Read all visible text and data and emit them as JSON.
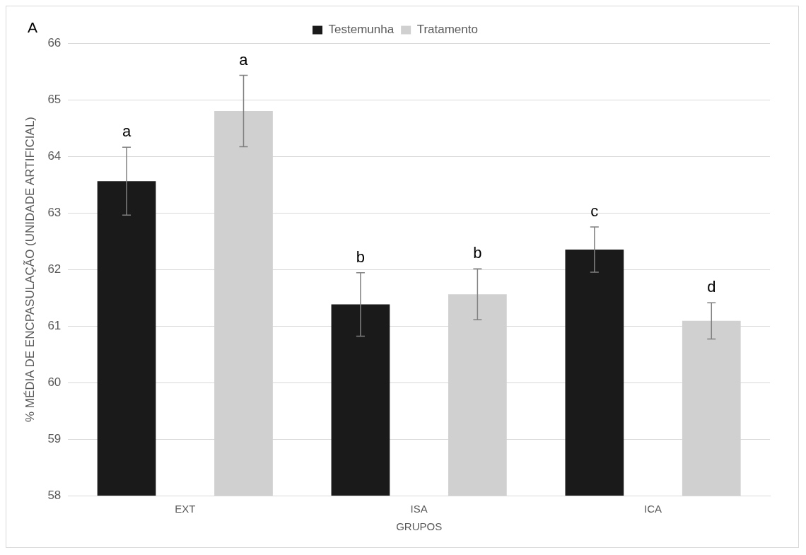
{
  "chart_data": {
    "type": "bar",
    "xlabel": "GRUPOS",
    "ylabel": "% MÉDIA DE ENCPASULAÇÃO (UNIDADE ARTIFICIAL)",
    "annotations": [
      "A"
    ],
    "categories": [
      "EXT",
      "ISA",
      "ICA"
    ],
    "series": [
      {
        "name": "Testemunha",
        "color": "#1a1a1a",
        "values": [
          63.56,
          61.38,
          62.35
        ],
        "errors": [
          0.6,
          0.56,
          0.4
        ],
        "value_labels": [
          "a",
          "b",
          "c"
        ]
      },
      {
        "name": "Tratamento",
        "color": "#d0d0d0",
        "values": [
          64.8,
          61.56,
          61.09
        ],
        "errors": [
          0.63,
          0.45,
          0.32
        ],
        "value_labels": [
          "a",
          "b",
          "d"
        ]
      }
    ],
    "ylim": [
      58,
      66
    ],
    "yticks": [
      58,
      59,
      60,
      61,
      62,
      63,
      64,
      65,
      66
    ],
    "grid": "y",
    "legend": "top"
  }
}
